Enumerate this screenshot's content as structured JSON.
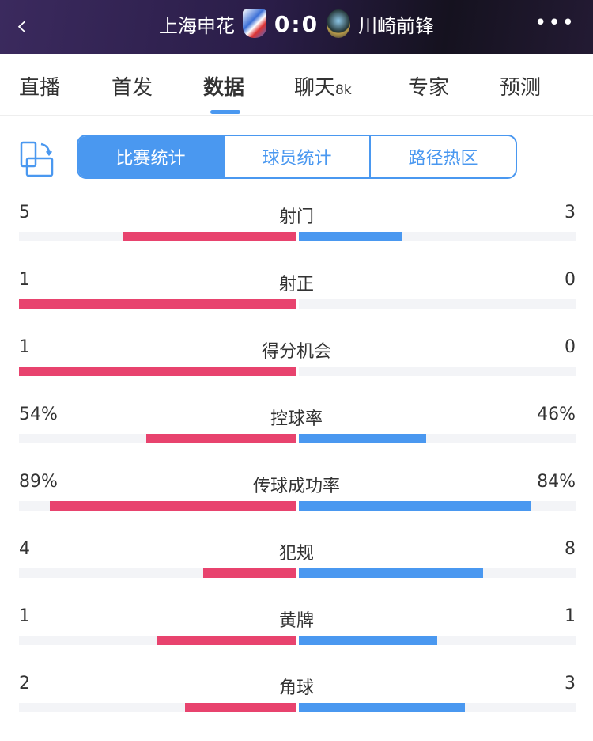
{
  "header": {
    "home": "上海申花",
    "score": "0:0",
    "away": "川崎前锋"
  },
  "tabs": [
    {
      "label": "直播"
    },
    {
      "label": "首发"
    },
    {
      "label": "数据"
    },
    {
      "label": "聊天",
      "badge": "8k"
    },
    {
      "label": "专家"
    },
    {
      "label": "预测"
    }
  ],
  "active_tab": "数据",
  "segments": [
    "比赛统计",
    "球员统计",
    "路径热区"
  ],
  "colors": {
    "home": "#e8436e",
    "away": "#4a98f0",
    "accent": "#4a98f0"
  },
  "stats": [
    {
      "name": "射门",
      "home": "5",
      "away": "3",
      "home_frac": 0.625,
      "away_frac": 0.375
    },
    {
      "name": "射正",
      "home": "1",
      "away": "0",
      "home_frac": 1,
      "away_frac": 0
    },
    {
      "name": "得分机会",
      "home": "1",
      "away": "0",
      "home_frac": 1,
      "away_frac": 0
    },
    {
      "name": "控球率",
      "home": "54%",
      "away": "46%",
      "home_frac": 0.54,
      "away_frac": 0.46
    },
    {
      "name": "传球成功率",
      "home": "89%",
      "away": "84%",
      "home_frac": 0.89,
      "away_frac": 0.84
    },
    {
      "name": "犯规",
      "home": "4",
      "away": "8",
      "home_frac": 0.333,
      "away_frac": 0.667
    },
    {
      "name": "黄牌",
      "home": "1",
      "away": "1",
      "home_frac": 0.5,
      "away_frac": 0.5
    },
    {
      "name": "角球",
      "home": "2",
      "away": "3",
      "home_frac": 0.4,
      "away_frac": 0.6
    }
  ]
}
